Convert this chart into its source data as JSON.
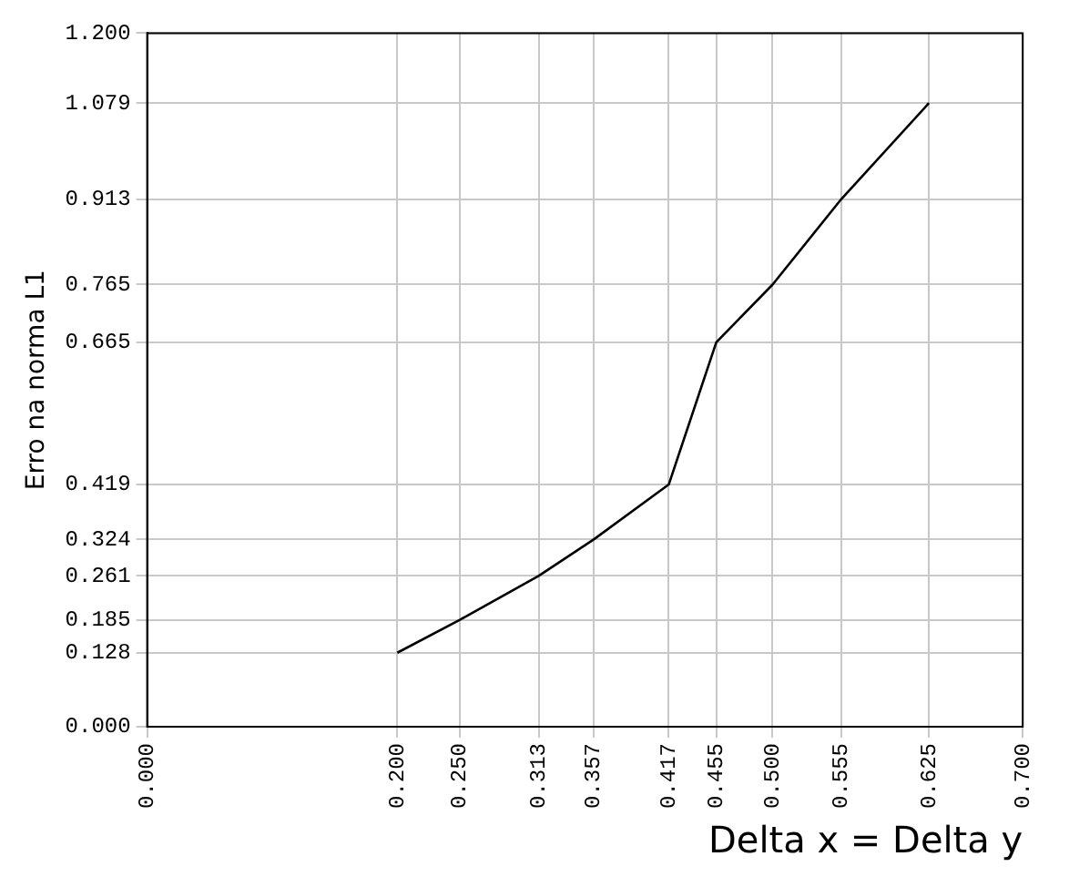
{
  "chart_data": {
    "type": "line",
    "xlabel": "Delta x = Delta y",
    "ylabel": "Erro na norma L1",
    "x": [
      0.2,
      0.25,
      0.313,
      0.357,
      0.417,
      0.455,
      0.5,
      0.555,
      0.625
    ],
    "series": [
      {
        "color": "#000000",
        "values": [
          0.128,
          0.185,
          0.261,
          0.324,
          0.419,
          0.665,
          0.765,
          0.913,
          1.079
        ]
      }
    ],
    "xlim": [
      0,
      0.7
    ],
    "ylim": [
      0,
      1.2
    ],
    "xticks": [
      {
        "value": 0,
        "label": "0.000"
      },
      {
        "value": 0.2,
        "label": "0.200"
      },
      {
        "value": 0.25,
        "label": "0.250"
      },
      {
        "value": 0.313,
        "label": "0.313"
      },
      {
        "value": 0.357,
        "label": "0.357"
      },
      {
        "value": 0.417,
        "label": "0.417"
      },
      {
        "value": 0.455,
        "label": "0.455"
      },
      {
        "value": 0.5,
        "label": "0.500"
      },
      {
        "value": 0.555,
        "label": "0.555"
      },
      {
        "value": 0.625,
        "label": "0.625"
      },
      {
        "value": 0.7,
        "label": "0.700"
      }
    ],
    "yticks": [
      {
        "value": 0,
        "label": "0.000"
      },
      {
        "value": 0.128,
        "label": "0.128"
      },
      {
        "value": 0.185,
        "label": "0.185"
      },
      {
        "value": 0.261,
        "label": "0.261"
      },
      {
        "value": 0.324,
        "label": "0.324"
      },
      {
        "value": 0.419,
        "label": "0.419"
      },
      {
        "value": 0.665,
        "label": "0.665"
      },
      {
        "value": 0.765,
        "label": "0.765"
      },
      {
        "value": 0.913,
        "label": "0.913"
      },
      {
        "value": 1.079,
        "label": "1.079"
      },
      {
        "value": 1.2,
        "label": "1.200"
      }
    ],
    "grid": true,
    "legend": false,
    "marker": "none",
    "line_style": "solid"
  }
}
